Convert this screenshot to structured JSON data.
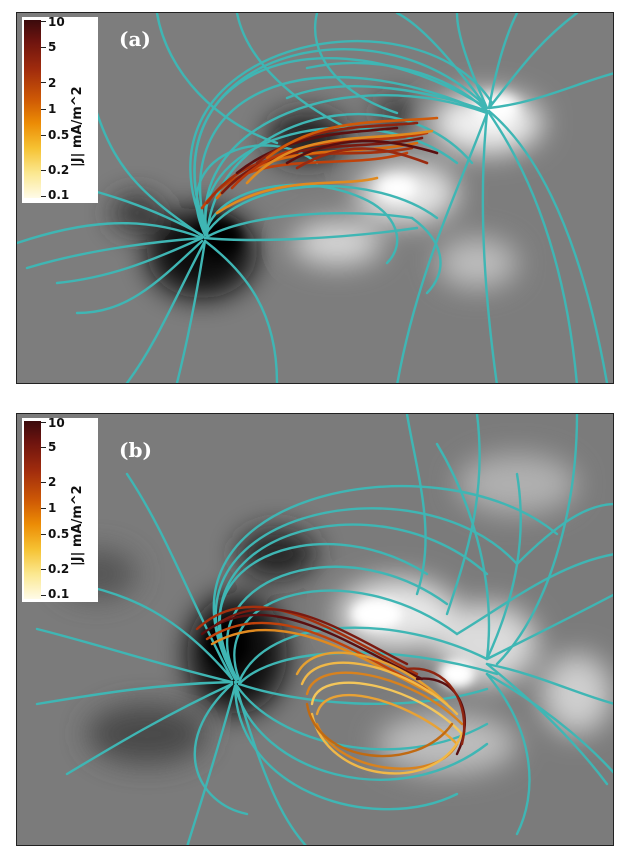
{
  "panels": [
    {
      "label": "(a)",
      "colorbar": {
        "title": "|J| mA/m^2",
        "ticks": [
          "10",
          "5",
          "2",
          "1",
          "0.5",
          "0.2",
          "0.1"
        ]
      }
    },
    {
      "label": "(b)",
      "colorbar": {
        "title": "|J| mA/m^2",
        "ticks": [
          "10",
          "5",
          "2",
          "1",
          "0.5",
          "0.2",
          "0.1"
        ]
      }
    }
  ],
  "colors": {
    "field_lines": "#3fb6b4",
    "background_gray": "#7c7c7c",
    "current_high": "#5a0f10",
    "current_low": "#f4c65a"
  }
}
